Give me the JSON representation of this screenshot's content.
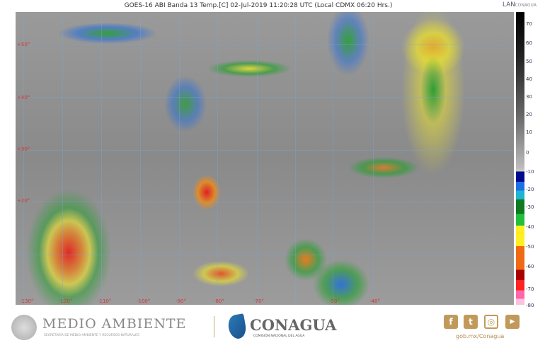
{
  "header": {
    "title": "GOES-16 ABI Banda 13 Temp.[C] 02-Jul-2019 11:20:28 UTC (Local CDMX  06:20 Hrs.)",
    "logo_lan": "LAN",
    "logo_conagua_small": "CONAGUA"
  },
  "map": {
    "latitude_labels": [
      "+50°",
      "+40°",
      "+30°",
      "+20°"
    ],
    "longitude_labels": [
      "-130°",
      "-120°",
      "-110°",
      "-100°",
      "-90°",
      "-80°",
      "-70°",
      "-50°",
      "-40°"
    ]
  },
  "colorbar": {
    "unit": "°C",
    "ticks": [
      "70",
      "60",
      "50",
      "40",
      "30",
      "20",
      "10",
      "0",
      "-10",
      "-20",
      "-30",
      "-40",
      "-50",
      "-60",
      "-70",
      "-80"
    ],
    "colors": [
      "#000000",
      "#bbbbbb",
      "#000a8c",
      "#1e6ee6",
      "#1eb4d2",
      "#107a20",
      "#22c03a",
      "#ffee22",
      "#f06a14",
      "#aa0000",
      "#ff2222",
      "#ff66aa"
    ]
  },
  "footer": {
    "medio_ambiente": "MEDIO AMBIENTE",
    "medio_sub": "SECRETARÍA DE MEDIO AMBIENTE Y RECURSOS NATURALES",
    "conagua": "CONAGUA",
    "conagua_sub": "COMISIÓN NACIONAL DEL AGUA",
    "social": [
      {
        "icon": "facebook-icon",
        "glyph": "f"
      },
      {
        "icon": "twitter-icon",
        "glyph": "t"
      },
      {
        "icon": "instagram-icon",
        "glyph": "◎"
      },
      {
        "icon": "youtube-icon",
        "glyph": "▶"
      }
    ],
    "url": "gob.mx/Conagua"
  }
}
